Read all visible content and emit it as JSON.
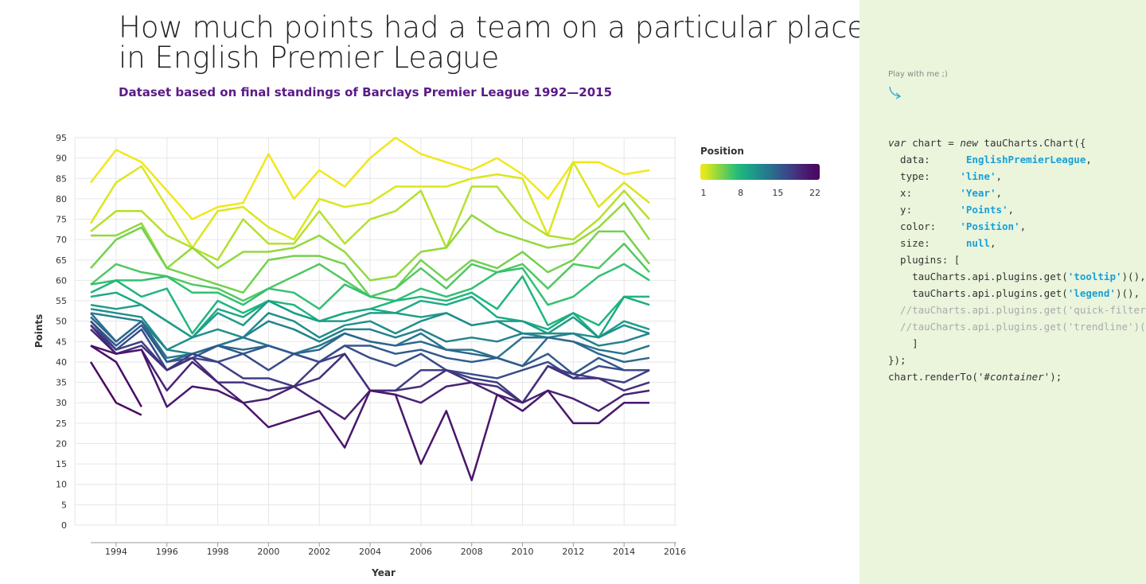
{
  "chart_data": {
    "type": "line",
    "title": [
      "How much points had a team on a particular place",
      "in English Premier League"
    ],
    "subtitle": "Dataset based on final standings of Barclays Premier League 1992—2015",
    "x_label": "Year",
    "y_label": "Points",
    "x": [
      1993,
      1994,
      1995,
      1996,
      1997,
      1998,
      1999,
      2000,
      2001,
      2002,
      2003,
      2004,
      2005,
      2006,
      2007,
      2008,
      2009,
      2010,
      2011,
      2012,
      2013,
      2014,
      2015
    ],
    "xlim": [
      1993,
      2016
    ],
    "xticks": [
      1994,
      1996,
      1998,
      2000,
      2002,
      2004,
      2006,
      2008,
      2010,
      2012,
      2014,
      2016
    ],
    "ylim": [
      0,
      95
    ],
    "yticks": [
      0,
      5,
      10,
      15,
      20,
      25,
      30,
      35,
      40,
      45,
      50,
      55,
      60,
      65,
      70,
      75,
      80,
      85,
      90,
      95
    ],
    "grid": true,
    "legend": {
      "title": "Position",
      "range": [
        1,
        22
      ],
      "ticks": [
        1,
        8,
        15,
        22
      ]
    },
    "series": [
      {
        "color": "#f2e71d",
        "values": [
          84,
          92,
          89,
          82,
          75,
          78,
          79,
          91,
          80,
          87,
          83,
          90,
          95,
          91,
          89,
          87,
          90,
          86,
          80,
          89,
          89,
          86,
          87
        ]
      },
      {
        "color": "#d9e71f",
        "values": [
          74,
          84,
          88,
          78,
          68,
          77,
          78,
          73,
          70,
          80,
          78,
          79,
          83,
          83,
          83,
          85,
          86,
          85,
          71,
          89,
          78,
          84,
          79
        ]
      },
      {
        "color": "#b5e02d",
        "values": [
          72,
          77,
          77,
          71,
          68,
          65,
          75,
          69,
          69,
          77,
          69,
          75,
          77,
          82,
          68,
          83,
          83,
          75,
          71,
          70,
          75,
          82,
          75
        ]
      },
      {
        "color": "#93d83e",
        "values": [
          71,
          71,
          74,
          63,
          68,
          63,
          67,
          67,
          68,
          71,
          67,
          60,
          61,
          67,
          68,
          76,
          72,
          70,
          68,
          69,
          73,
          79,
          70
        ]
      },
      {
        "color": "#73d14f",
        "values": [
          63,
          70,
          73,
          63,
          61,
          59,
          57,
          65,
          66,
          66,
          64,
          56,
          58,
          65,
          60,
          65,
          63,
          67,
          62,
          65,
          72,
          72,
          64
        ]
      },
      {
        "color": "#52c862",
        "values": [
          59,
          64,
          62,
          61,
          59,
          58,
          55,
          58,
          61,
          64,
          60,
          56,
          58,
          63,
          58,
          64,
          62,
          64,
          58,
          64,
          63,
          69,
          62
        ]
      },
      {
        "color": "#33c072",
        "values": [
          59,
          60,
          60,
          61,
          57,
          57,
          54,
          58,
          57,
          53,
          59,
          56,
          55,
          58,
          56,
          58,
          62,
          63,
          54,
          56,
          61,
          64,
          60
        ]
      },
      {
        "color": "#1fb67e",
        "values": [
          57,
          60,
          56,
          58,
          47,
          55,
          52,
          55,
          54,
          50,
          52,
          53,
          55,
          56,
          55,
          57,
          53,
          61,
          49,
          52,
          49,
          56,
          56
        ]
      },
      {
        "color": "#1daa84",
        "values": [
          56,
          57,
          54,
          50,
          46,
          53,
          51,
          55,
          52,
          50,
          52,
          53,
          52,
          55,
          54,
          56,
          51,
          50,
          48,
          52,
          46,
          56,
          54
        ]
      },
      {
        "color": "#1e9d89",
        "values": [
          54,
          53,
          54,
          50,
          46,
          52,
          49,
          55,
          52,
          50,
          50,
          52,
          52,
          51,
          52,
          49,
          50,
          50,
          47,
          51,
          46,
          50,
          48
        ]
      },
      {
        "color": "#218f8b",
        "values": [
          53,
          52,
          51,
          43,
          46,
          48,
          46,
          52,
          50,
          46,
          49,
          50,
          47,
          50,
          52,
          49,
          50,
          47,
          47,
          47,
          46,
          49,
          47
        ]
      },
      {
        "color": "#24828d",
        "values": [
          52,
          51,
          50,
          43,
          42,
          44,
          46,
          50,
          48,
          45,
          48,
          48,
          46,
          48,
          45,
          46,
          45,
          47,
          46,
          47,
          44,
          45,
          47
        ]
      },
      {
        "color": "#28758d",
        "values": [
          52,
          45,
          50,
          41,
          42,
          44,
          46,
          44,
          42,
          44,
          47,
          45,
          44,
          47,
          43,
          43,
          41,
          46,
          46,
          45,
          43,
          42,
          44
        ]
      },
      {
        "color": "#2c678d",
        "values": [
          51,
          45,
          50,
          40,
          42,
          44,
          43,
          44,
          42,
          43,
          47,
          45,
          44,
          45,
          43,
          42,
          41,
          39,
          46,
          45,
          42,
          40,
          41
        ]
      },
      {
        "color": "#31598c",
        "values": [
          50,
          44,
          49,
          40,
          41,
          44,
          42,
          44,
          42,
          40,
          44,
          44,
          42,
          43,
          41,
          40,
          41,
          39,
          42,
          37,
          41,
          38,
          38
        ]
      },
      {
        "color": "#384c89",
        "values": [
          50,
          43,
          48,
          38,
          41,
          40,
          42,
          38,
          42,
          40,
          44,
          41,
          39,
          42,
          38,
          37,
          36,
          38,
          40,
          36,
          39,
          38,
          38
        ]
      },
      {
        "color": "#3f3e84",
        "values": [
          49,
          43,
          45,
          38,
          42,
          40,
          36,
          36,
          34,
          40,
          42,
          33,
          33,
          38,
          38,
          36,
          35,
          30,
          39,
          37,
          36,
          35,
          38
        ]
      },
      {
        "color": "#44307d",
        "values": [
          49,
          42,
          44,
          38,
          41,
          35,
          35,
          33,
          34,
          36,
          42,
          33,
          33,
          34,
          38,
          35,
          34,
          30,
          39,
          36,
          36,
          33,
          35
        ]
      },
      {
        "color": "#482374",
        "values": [
          48,
          42,
          43,
          33,
          40,
          35,
          30,
          31,
          34,
          30,
          26,
          33,
          32,
          30,
          34,
          35,
          32,
          30,
          33,
          31,
          28,
          32,
          33
        ]
      },
      {
        "color": "#49166b",
        "values": [
          44,
          42,
          43,
          29,
          34,
          33,
          30,
          24,
          26,
          28,
          19,
          33,
          32,
          15,
          28,
          11,
          32,
          28,
          33,
          25,
          25,
          30,
          30
        ]
      },
      {
        "color": "#4a0c64",
        "values": [
          44,
          40,
          29,
          null,
          null,
          null,
          null,
          null,
          null,
          null,
          null,
          null,
          null,
          null,
          null,
          null,
          null,
          null,
          null,
          null,
          null,
          null,
          null
        ]
      },
      {
        "color": "#4b0a5e",
        "values": [
          40,
          30,
          27,
          null,
          null,
          null,
          null,
          null,
          null,
          null,
          null,
          null,
          null,
          null,
          null,
          null,
          null,
          null,
          null,
          null,
          null,
          null,
          null
        ]
      }
    ]
  },
  "side": {
    "hint": "Play with me ;)",
    "code": [
      [
        [
          "var",
          "i"
        ],
        [
          " chart = ",
          ""
        ],
        [
          "new",
          "i"
        ],
        [
          " tauCharts.Chart({",
          ""
        ]
      ],
      [
        [
          "  data:      ",
          ""
        ],
        [
          "EnglishPremierLeague",
          "s"
        ],
        [
          ",",
          ""
        ]
      ],
      [
        [
          "  type:     ",
          ""
        ],
        [
          "'line'",
          "s"
        ],
        [
          ",",
          ""
        ]
      ],
      [
        [
          "  x:        ",
          ""
        ],
        [
          "'Year'",
          "s"
        ],
        [
          ",",
          ""
        ]
      ],
      [
        [
          "  y:        ",
          ""
        ],
        [
          "'Points'",
          "s"
        ],
        [
          ",",
          ""
        ]
      ],
      [
        [
          "  color:    ",
          ""
        ],
        [
          "'Position'",
          "s"
        ],
        [
          ",",
          ""
        ]
      ],
      [
        [
          "  size:      ",
          ""
        ],
        [
          "null",
          "s"
        ],
        [
          ",",
          ""
        ]
      ],
      [
        [
          "  plugins: [",
          ""
        ]
      ],
      [
        [
          "    tauCharts.api.plugins.get(",
          ""
        ],
        [
          "'tooltip'",
          "s"
        ],
        [
          ")(),",
          ""
        ]
      ],
      [
        [
          "    tauCharts.api.plugins.get(",
          ""
        ],
        [
          "'legend'",
          "s"
        ],
        [
          ")(),",
          ""
        ]
      ],
      [
        [
          "  //tauCharts.api.plugins.get('quick-filter')(),",
          "c"
        ]
      ],
      [
        [
          "  //tauCharts.api.plugins.get('trendline')(),",
          "c"
        ]
      ],
      [
        [
          "    ]",
          ""
        ]
      ],
      [
        [
          "});",
          ""
        ]
      ],
      [
        [
          "chart.renderTo(",
          ""
        ],
        [
          "'#container'",
          "i"
        ],
        [
          ");",
          ""
        ]
      ]
    ]
  }
}
